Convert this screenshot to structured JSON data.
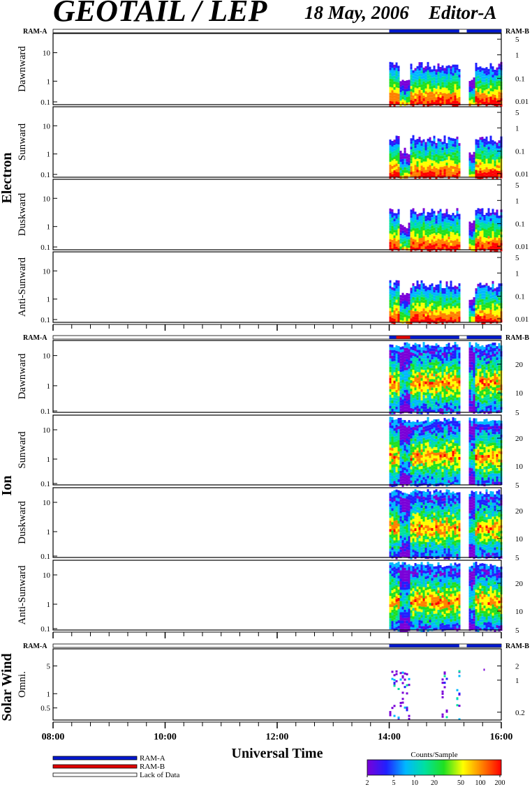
{
  "header": {
    "title": "GEOTAIL / LEP",
    "date": "18 May, 2006",
    "editor": "Editor-A"
  },
  "chart_data": {
    "type": "heatmap",
    "xlabel": "Universal Time",
    "x_ticks": [
      "08:00",
      "10:00",
      "12:00",
      "14:00",
      "16:00"
    ],
    "xlim": [
      "08:00",
      "16:00"
    ],
    "data_coverage": [
      "14:00",
      "16:00"
    ],
    "colorbar": {
      "title": "Counts/Sample",
      "ticks": [
        "2",
        "5",
        "10",
        "20",
        "50",
        "100",
        "200"
      ],
      "colors": [
        "#7a00d8",
        "#2020ff",
        "#00b8ff",
        "#00e0a0",
        "#20e020",
        "#ffff00",
        "#ff8000",
        "#ff0000"
      ]
    },
    "legend": [
      {
        "label": "RAM-A",
        "color": "#0018d0"
      },
      {
        "label": "RAM-B",
        "color": "#e00000"
      },
      {
        "label": "Lack of Data",
        "color": "#ffffff"
      }
    ],
    "mode_bar_labels": {
      "left": "RAM-A",
      "right": "RAM-B"
    },
    "groups": [
      {
        "name": "Electron",
        "panels": [
          {
            "name": "Dawnward",
            "left_ticks": [
              "0.1",
              "1",
              "10"
            ],
            "right_ticks": [
              "0.01",
              "0.1",
              "1",
              "5"
            ]
          },
          {
            "name": "Sunward",
            "left_ticks": [
              "0.1",
              "1",
              "10"
            ],
            "right_ticks": [
              "0.01",
              "0.1",
              "1",
              "5"
            ]
          },
          {
            "name": "Duskward",
            "left_ticks": [
              "0.1",
              "1",
              "10"
            ],
            "right_ticks": [
              "0.01",
              "0.1",
              "1",
              "5"
            ]
          },
          {
            "name": "Anti-Sunward",
            "left_ticks": [
              "0.1",
              "1",
              "10"
            ],
            "right_ticks": [
              "0.01",
              "0.1",
              "1",
              "5"
            ]
          }
        ]
      },
      {
        "name": "Ion",
        "panels": [
          {
            "name": "Dawnward",
            "left_ticks": [
              "0.1",
              "1",
              "10"
            ],
            "right_ticks": [
              "5",
              "10",
              "20"
            ]
          },
          {
            "name": "Sunward",
            "left_ticks": [
              "0.1",
              "1",
              "10"
            ],
            "right_ticks": [
              "5",
              "10",
              "20"
            ]
          },
          {
            "name": "Duskward",
            "left_ticks": [
              "0.1",
              "1",
              "10"
            ],
            "right_ticks": [
              "5",
              "10",
              "20"
            ]
          },
          {
            "name": "Anti-Sunward",
            "left_ticks": [
              "0.1",
              "1",
              "10"
            ],
            "right_ticks": [
              "5",
              "10",
              "20"
            ]
          }
        ]
      },
      {
        "name": "Solar Wind",
        "panels": [
          {
            "name": "Omni.",
            "left_ticks": [
              "0.5",
              "1",
              "5"
            ],
            "right_ticks": [
              "0.2",
              "1",
              "2"
            ]
          }
        ]
      }
    ]
  }
}
